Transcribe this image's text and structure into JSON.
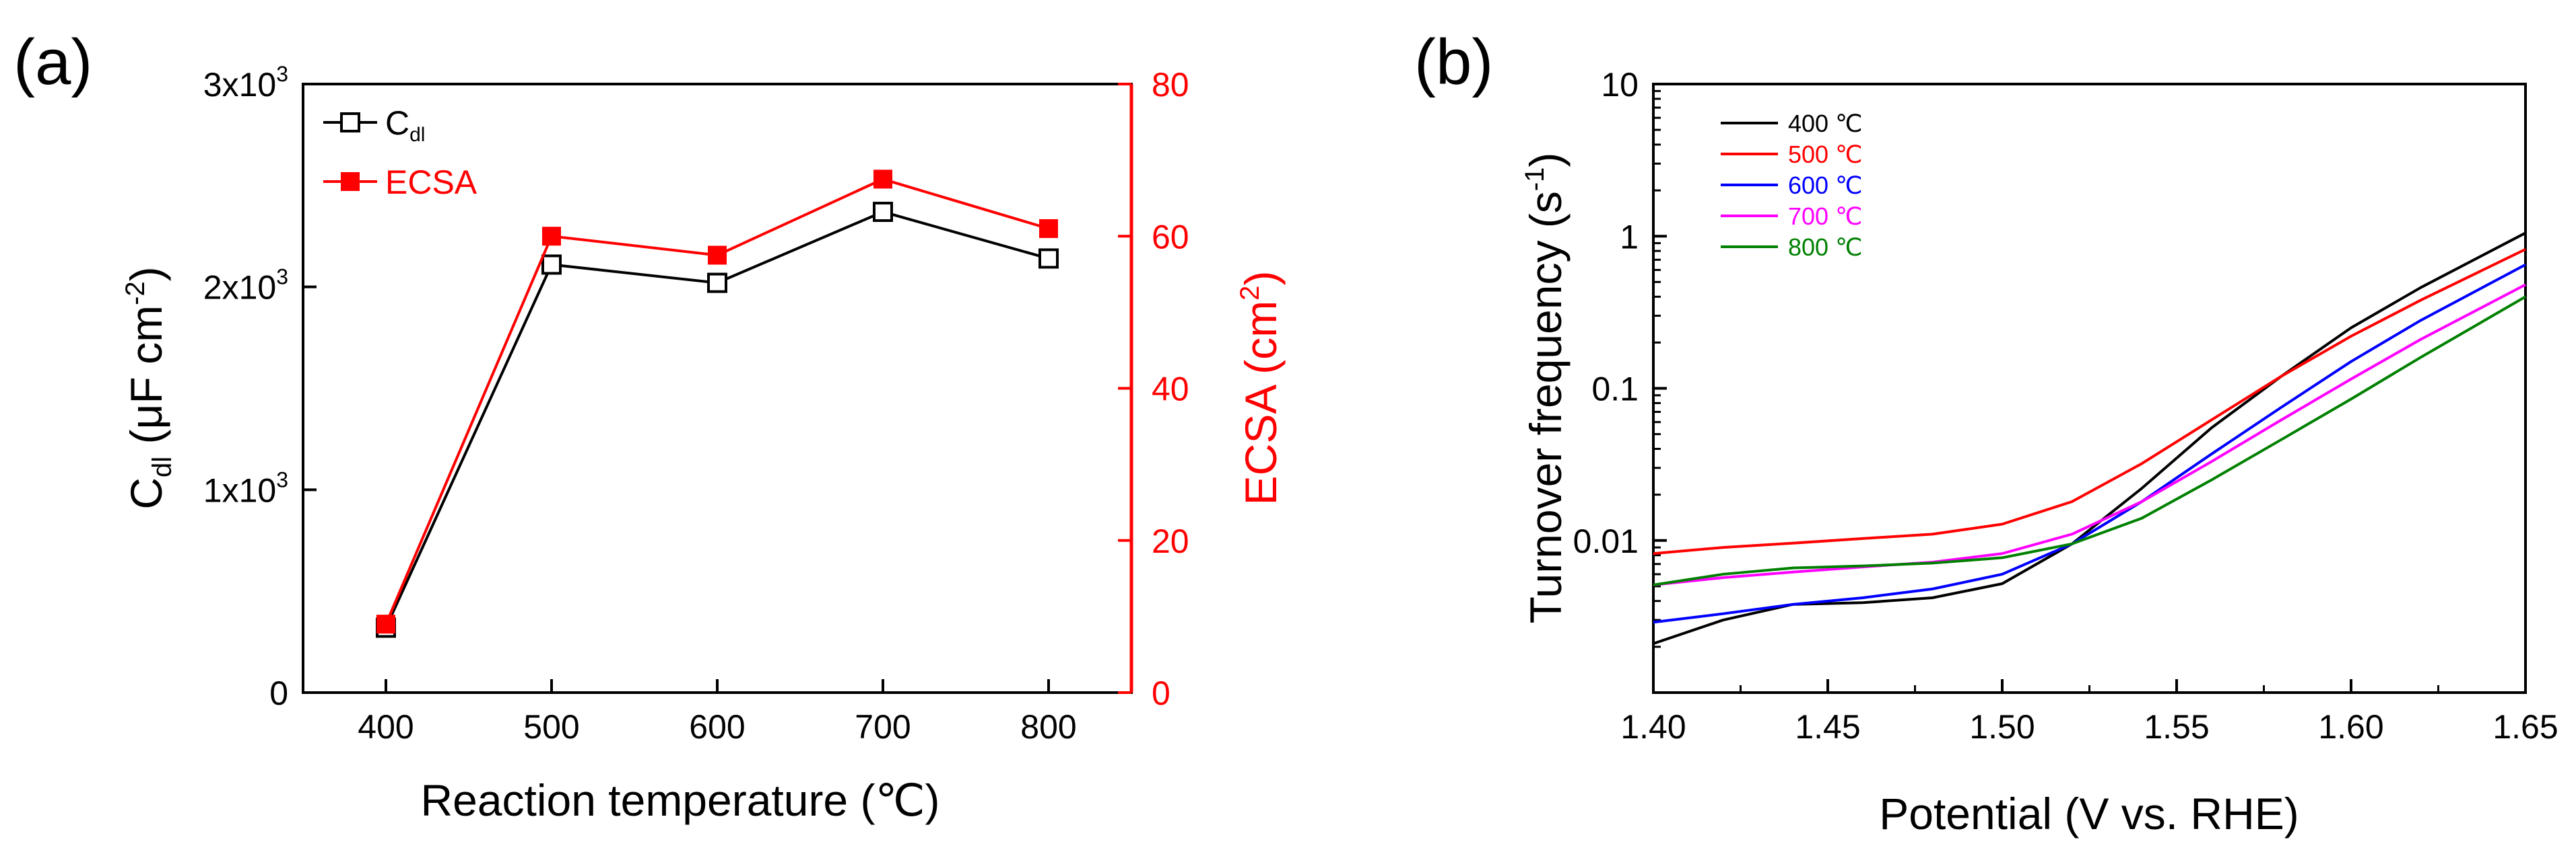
{
  "panels": {
    "a_label": "(a)",
    "b_label": "(b)"
  },
  "chart_data": [
    {
      "type": "line",
      "panel": "(a)",
      "x": [
        400,
        500,
        600,
        700,
        800
      ],
      "xlim": [
        350,
        850
      ],
      "xticks": [
        400,
        500,
        600,
        700,
        800
      ],
      "xlabel": "Reaction temperature (℃)",
      "left_axis": {
        "ylabel": "C",
        "ylabel_sub": "dl",
        "ylabel_rest": " (μF cm",
        "ylabel_sup": "-2",
        "ylabel_end": ")",
        "ylim": [
          0,
          3000
        ],
        "yticks": [
          0,
          1000,
          2000,
          3000
        ],
        "ytick_labels": [
          {
            "base": "0",
            "sup": ""
          },
          {
            "base": "1x10",
            "sup": "3"
          },
          {
            "base": "2x10",
            "sup": "3"
          },
          {
            "base": "3x10",
            "sup": "3"
          }
        ],
        "color": "#000000"
      },
      "right_axis": {
        "ylabel": "ECSA (cm",
        "ylabel_sup": "2",
        "ylabel_end": ")",
        "ylim": [
          0,
          80
        ],
        "yticks": [
          0,
          20,
          40,
          60,
          80
        ],
        "color": "#ff0000"
      },
      "series": [
        {
          "name": "C",
          "name_sub": "dl",
          "axis": "left",
          "color": "#000000",
          "marker": "open-square",
          "values": [
            320,
            2110,
            2020,
            2370,
            2140
          ]
        },
        {
          "name": "ECSA",
          "axis": "right",
          "color": "#ff0000",
          "marker": "filled-square",
          "values": [
            9,
            60,
            57.5,
            67.5,
            61
          ]
        }
      ],
      "legend_position": "top-left"
    },
    {
      "type": "line",
      "panel": "(b)",
      "yscale": "log",
      "xlim": [
        1.4,
        1.65
      ],
      "xticks": [
        1.4,
        1.45,
        1.5,
        1.55,
        1.6,
        1.65
      ],
      "xtick_labels": [
        "1.40",
        "1.45",
        "1.50",
        "1.55",
        "1.60",
        "1.65"
      ],
      "xlabel": "Potential (V vs. RHE)",
      "ylabel": "Turnover frequency (s",
      "ylabel_sup": "-1",
      "ylabel_end": ")",
      "ylim": [
        0.001,
        10
      ],
      "yticks": [
        0.01,
        0.1,
        1,
        10
      ],
      "ytick_labels": [
        "0.01",
        "0.1",
        "1",
        "10"
      ],
      "legend_position": "top-left",
      "series": [
        {
          "name": "400 ℃",
          "color": "#000000",
          "x": [
            1.4,
            1.42,
            1.44,
            1.46,
            1.48,
            1.5,
            1.52,
            1.54,
            1.56,
            1.58,
            1.6,
            1.62,
            1.65
          ],
          "y": [
            0.0021,
            0.003,
            0.0038,
            0.0039,
            0.0042,
            0.0052,
            0.0095,
            0.022,
            0.055,
            0.12,
            0.25,
            0.46,
            1.05
          ]
        },
        {
          "name": "500 ℃",
          "color": "#ff0000",
          "x": [
            1.4,
            1.42,
            1.44,
            1.46,
            1.48,
            1.5,
            1.52,
            1.54,
            1.56,
            1.58,
            1.6,
            1.62,
            1.65
          ],
          "y": [
            0.0082,
            0.009,
            0.0096,
            0.0103,
            0.011,
            0.0128,
            0.018,
            0.032,
            0.062,
            0.12,
            0.22,
            0.38,
            0.82
          ]
        },
        {
          "name": "600 ℃",
          "color": "#0000ff",
          "x": [
            1.4,
            1.42,
            1.44,
            1.46,
            1.48,
            1.5,
            1.52,
            1.54,
            1.56,
            1.58,
            1.6,
            1.62,
            1.65
          ],
          "y": [
            0.0029,
            0.0033,
            0.0038,
            0.0042,
            0.0048,
            0.006,
            0.0095,
            0.018,
            0.037,
            0.075,
            0.15,
            0.28,
            0.65
          ]
        },
        {
          "name": "700 ℃",
          "color": "#ff00ff",
          "x": [
            1.4,
            1.42,
            1.44,
            1.46,
            1.48,
            1.5,
            1.52,
            1.54,
            1.56,
            1.58,
            1.6,
            1.62,
            1.65
          ],
          "y": [
            0.0051,
            0.0057,
            0.0062,
            0.0067,
            0.0072,
            0.0082,
            0.011,
            0.018,
            0.033,
            0.062,
            0.115,
            0.21,
            0.48
          ]
        },
        {
          "name": "800 ℃",
          "color": "#008000",
          "x": [
            1.4,
            1.42,
            1.44,
            1.46,
            1.48,
            1.5,
            1.52,
            1.54,
            1.56,
            1.58,
            1.6,
            1.62,
            1.65
          ],
          "y": [
            0.0051,
            0.006,
            0.0066,
            0.0068,
            0.0071,
            0.0077,
            0.0095,
            0.014,
            0.025,
            0.046,
            0.085,
            0.16,
            0.4
          ]
        }
      ]
    }
  ]
}
